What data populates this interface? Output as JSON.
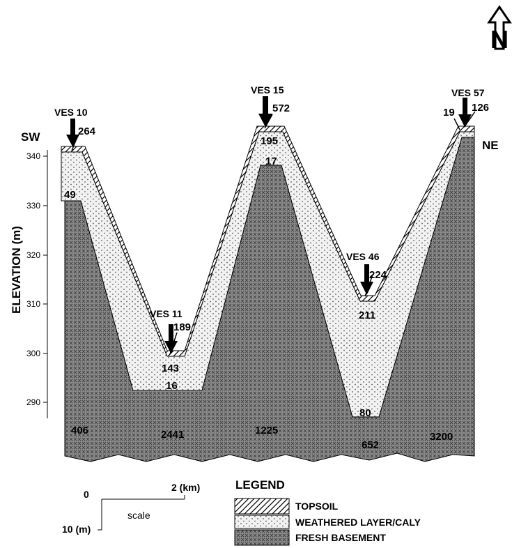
{
  "diagram": {
    "orientation": {
      "sw": "SW",
      "ne": "NE",
      "north_letter": "N"
    },
    "y_axis": {
      "label": "ELEVATION (m)",
      "ticks": [
        "340",
        "330",
        "320",
        "310",
        "300",
        "290"
      ]
    },
    "ves_stations": [
      "VES 10",
      "VES 11",
      "VES 15",
      "VES 46",
      "VES 57"
    ],
    "resistivities": {
      "topsoil": [
        "264",
        "189",
        "572",
        "224",
        "126"
      ],
      "weathered": [
        "49",
        "143",
        "16",
        "195",
        "17",
        "211",
        "80",
        "19"
      ],
      "basement": [
        "406",
        "2441",
        "1225",
        "652",
        "3200"
      ]
    },
    "scale": {
      "zero": "0",
      "horizontal": "2 (km)",
      "vertical": "10 (m)",
      "label": "scale"
    },
    "legend": {
      "title": "LEGEND",
      "items": [
        "TOPSOIL",
        "WEATHERED LAYER/CALY",
        "FRESH BASEMENT"
      ]
    }
  }
}
